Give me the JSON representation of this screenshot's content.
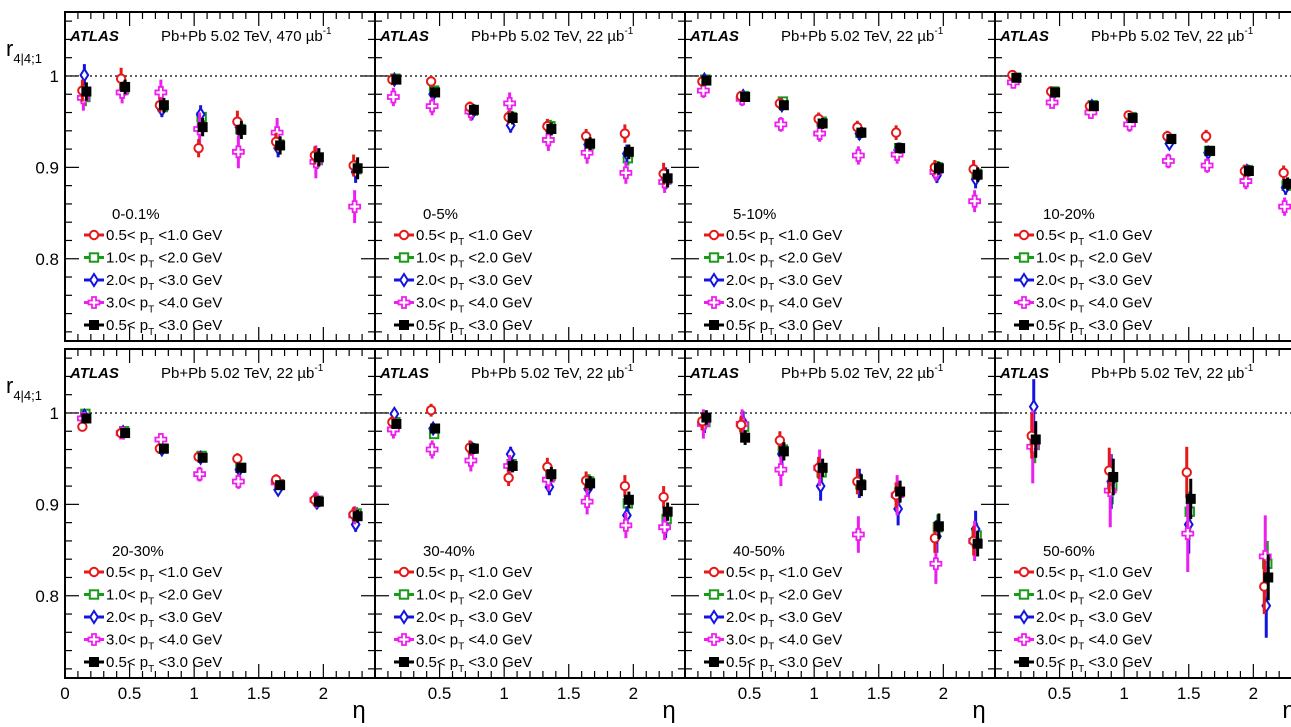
{
  "figure": {
    "experiment": "ATLAS",
    "ylabel_main": "r",
    "ylabel_sub": "4|4;1",
    "xlabel": "η",
    "ylim": [
      0.71,
      1.07
    ],
    "xlim": [
      0,
      2.4
    ],
    "y_ticks": [
      0.8,
      0.9,
      1
    ],
    "y_tick_labels": [
      "0.8",
      "0.9",
      "1"
    ],
    "x_ticks": [
      0,
      0.5,
      1,
      1.5,
      2
    ],
    "x_tick_labels": [
      "0",
      "0.5",
      "1",
      "1.5",
      "2"
    ],
    "reference_line": 1
  },
  "series_styles": [
    {
      "label_pre": "0.5< p",
      "label_sub": "T",
      "label_post": " <1.0 GeV",
      "color": "#e6191a",
      "marker": "open-circle"
    },
    {
      "label_pre": "1.0< p",
      "label_sub": "T",
      "label_post": " <2.0 GeV",
      "color": "#1a9a1a",
      "marker": "open-square"
    },
    {
      "label_pre": "2.0< p",
      "label_sub": "T",
      "label_post": " <3.0 GeV",
      "color": "#1414e0",
      "marker": "open-diamond"
    },
    {
      "label_pre": "3.0< p",
      "label_sub": "T",
      "label_post": " <4.0 GeV",
      "color": "#ee1fee",
      "marker": "open-cross"
    },
    {
      "label_pre": "0.5< p",
      "label_sub": "T",
      "label_post": " <3.0 GeV",
      "color": "#000000",
      "marker": "filled-square"
    }
  ],
  "chart_data": [
    {
      "type": "scatter",
      "centrality": "0-0.1%",
      "collision": "Pb+Pb 5.02 TeV, 470 µb",
      "lumi_sup": "-1",
      "x": [
        0.15,
        0.45,
        0.75,
        1.05,
        1.35,
        1.65,
        1.95,
        2.25
      ],
      "series": [
        {
          "name": "0.5< pT <1.0 GeV",
          "values": [
            0.984,
            0.997,
            0.968,
            0.921,
            0.95,
            0.928,
            0.913,
            0.902
          ],
          "errors": [
            0.012,
            0.012,
            0.008,
            0.01,
            0.012,
            0.01,
            0.01,
            0.012
          ]
        },
        {
          "name": "1.0< pT <2.0 GeV",
          "values": [
            0.977,
            0.986,
            0.966,
            0.955,
            0.942,
            0.925,
            0.908,
            0.898
          ],
          "errors": [
            0.01,
            0.008,
            0.007,
            0.008,
            0.009,
            0.009,
            0.009,
            0.01
          ]
        },
        {
          "name": "2.0< pT <3.0 GeV",
          "values": [
            1.001,
            0.984,
            0.963,
            0.958,
            0.944,
            0.921,
            0.908,
            0.895
          ],
          "errors": [
            0.012,
            0.008,
            0.008,
            0.01,
            0.01,
            0.01,
            0.01,
            0.012
          ]
        },
        {
          "name": "3.0< pT <4.0 GeV",
          "values": [
            0.976,
            0.982,
            0.982,
            0.942,
            0.917,
            0.938,
            0.906,
            0.857
          ],
          "errors": [
            0.014,
            0.012,
            0.014,
            0.018,
            0.018,
            0.016,
            0.018,
            0.018
          ]
        },
        {
          "name": "0.5< pT <3.0 GeV",
          "values": [
            0.983,
            0.988,
            0.968,
            0.944,
            0.941,
            0.924,
            0.911,
            0.899
          ],
          "errors": [
            0.01,
            0.008,
            0.008,
            0.01,
            0.01,
            0.01,
            0.01,
            0.012
          ]
        }
      ]
    },
    {
      "type": "scatter",
      "centrality": "0-5%",
      "collision": "Pb+Pb 5.02 TeV, 22 µb",
      "lumi_sup": "-1",
      "x": [
        0.15,
        0.45,
        0.75,
        1.05,
        1.35,
        1.65,
        1.95,
        2.25
      ],
      "series": [
        {
          "name": "0.5< pT <1.0 GeV",
          "values": [
            0.996,
            0.994,
            0.966,
            0.955,
            0.945,
            0.934,
            0.937,
            0.893
          ],
          "errors": [
            0.006,
            0.006,
            0.006,
            0.007,
            0.008,
            0.008,
            0.01,
            0.012
          ]
        },
        {
          "name": "1.0< pT <2.0 GeV",
          "values": [
            0.997,
            0.984,
            0.962,
            0.955,
            0.945,
            0.925,
            0.91,
            0.887
          ],
          "errors": [
            0.005,
            0.005,
            0.006,
            0.007,
            0.007,
            0.007,
            0.008,
            0.01
          ]
        },
        {
          "name": "2.0< pT <3.0 GeV",
          "values": [
            0.996,
            0.98,
            0.959,
            0.946,
            0.941,
            0.925,
            0.915,
            0.888
          ],
          "errors": [
            0.006,
            0.006,
            0.007,
            0.008,
            0.008,
            0.008,
            0.01,
            0.012
          ]
        },
        {
          "name": "3.0< pT <4.0 GeV",
          "values": [
            0.977,
            0.967,
            0.961,
            0.97,
            0.93,
            0.916,
            0.894,
            0.884
          ],
          "errors": [
            0.01,
            0.01,
            0.01,
            0.012,
            0.012,
            0.012,
            0.012,
            0.012
          ]
        },
        {
          "name": "0.5< pT <3.0 GeV",
          "values": [
            0.996,
            0.982,
            0.963,
            0.954,
            0.942,
            0.926,
            0.917,
            0.888
          ],
          "errors": [
            0.005,
            0.005,
            0.006,
            0.007,
            0.007,
            0.007,
            0.008,
            0.01
          ]
        }
      ]
    },
    {
      "type": "scatter",
      "centrality": "5-10%",
      "collision": "Pb+Pb 5.02 TeV, 22 µb",
      "lumi_sup": "-1",
      "x": [
        0.15,
        0.45,
        0.75,
        1.05,
        1.35,
        1.65,
        1.95,
        2.25
      ],
      "series": [
        {
          "name": "0.5< pT <1.0 GeV",
          "values": [
            0.994,
            0.978,
            0.97,
            0.953,
            0.944,
            0.938,
            0.9,
            0.898
          ],
          "errors": [
            0.005,
            0.005,
            0.006,
            0.007,
            0.007,
            0.008,
            0.008,
            0.01
          ]
        },
        {
          "name": "1.0< pT <2.0 GeV",
          "values": [
            0.996,
            0.978,
            0.972,
            0.95,
            0.938,
            0.921,
            0.9,
            0.893
          ],
          "errors": [
            0.004,
            0.004,
            0.005,
            0.006,
            0.006,
            0.006,
            0.007,
            0.008
          ]
        },
        {
          "name": "2.0< pT <3.0 GeV",
          "values": [
            0.996,
            0.978,
            0.968,
            0.949,
            0.937,
            0.919,
            0.891,
            0.887
          ],
          "errors": [
            0.005,
            0.005,
            0.006,
            0.007,
            0.007,
            0.008,
            0.008,
            0.01
          ]
        },
        {
          "name": "3.0< pT <4.0 GeV",
          "values": [
            0.984,
            0.975,
            0.947,
            0.937,
            0.913,
            0.914,
            0.895,
            0.863
          ],
          "errors": [
            0.008,
            0.008,
            0.008,
            0.009,
            0.01,
            0.01,
            0.01,
            0.012
          ]
        },
        {
          "name": "0.5< pT <3.0 GeV",
          "values": [
            0.995,
            0.977,
            0.968,
            0.948,
            0.938,
            0.921,
            0.899,
            0.892
          ],
          "errors": [
            0.004,
            0.004,
            0.005,
            0.006,
            0.006,
            0.006,
            0.007,
            0.008
          ]
        }
      ]
    },
    {
      "type": "scatter",
      "centrality": "10-20%",
      "collision": "Pb+Pb 5.02 TeV, 22 µb",
      "lumi_sup": "-1",
      "x": [
        0.15,
        0.45,
        0.75,
        1.05,
        1.35,
        1.65,
        1.95,
        2.25
      ],
      "series": [
        {
          "name": "0.5< pT <1.0 GeV",
          "values": [
            1.001,
            0.983,
            0.967,
            0.957,
            0.934,
            0.934,
            0.896,
            0.894
          ],
          "errors": [
            0.004,
            0.004,
            0.005,
            0.005,
            0.006,
            0.007,
            0.007,
            0.008
          ]
        },
        {
          "name": "1.0< pT <2.0 GeV",
          "values": [
            0.998,
            0.983,
            0.968,
            0.955,
            0.931,
            0.918,
            0.897,
            0.88
          ],
          "errors": [
            0.003,
            0.003,
            0.004,
            0.005,
            0.005,
            0.005,
            0.006,
            0.007
          ]
        },
        {
          "name": "2.0< pT <3.0 GeV",
          "values": [
            0.998,
            0.98,
            0.967,
            0.952,
            0.926,
            0.916,
            0.896,
            0.878
          ],
          "errors": [
            0.004,
            0.004,
            0.005,
            0.005,
            0.006,
            0.006,
            0.007,
            0.008
          ]
        },
        {
          "name": "3.0< pT <4.0 GeV",
          "values": [
            0.993,
            0.971,
            0.96,
            0.947,
            0.907,
            0.902,
            0.885,
            0.857
          ],
          "errors": [
            0.006,
            0.006,
            0.007,
            0.008,
            0.008,
            0.008,
            0.009,
            0.01
          ]
        },
        {
          "name": "0.5< pT <3.0 GeV",
          "values": [
            0.998,
            0.982,
            0.967,
            0.954,
            0.931,
            0.918,
            0.896,
            0.882
          ],
          "errors": [
            0.003,
            0.003,
            0.004,
            0.005,
            0.005,
            0.005,
            0.006,
            0.007
          ]
        }
      ]
    },
    {
      "type": "scatter",
      "centrality": "20-30%",
      "collision": "Pb+Pb 5.02 TeV, 22 µb",
      "lumi_sup": "-1",
      "x": [
        0.15,
        0.45,
        0.75,
        1.05,
        1.35,
        1.65,
        1.95,
        2.25
      ],
      "series": [
        {
          "name": "0.5< pT <1.0 GeV",
          "values": [
            0.985,
            0.978,
            0.961,
            0.952,
            0.95,
            0.927,
            0.905,
            0.889
          ],
          "errors": [
            0.004,
            0.004,
            0.005,
            0.005,
            0.006,
            0.006,
            0.007,
            0.008
          ]
        },
        {
          "name": "1.0< pT <2.0 GeV",
          "values": [
            0.999,
            0.98,
            0.961,
            0.953,
            0.94,
            0.922,
            0.904,
            0.89
          ],
          "errors": [
            0.003,
            0.003,
            0.004,
            0.004,
            0.005,
            0.005,
            0.006,
            0.007
          ]
        },
        {
          "name": "2.0< pT <3.0 GeV",
          "values": [
            0.997,
            0.979,
            0.96,
            0.951,
            0.938,
            0.916,
            0.902,
            0.878
          ],
          "errors": [
            0.004,
            0.004,
            0.005,
            0.005,
            0.006,
            0.006,
            0.007,
            0.008
          ]
        },
        {
          "name": "3.0< pT <4.0 GeV",
          "values": [
            0.994,
            0.978,
            0.971,
            0.933,
            0.925,
            0.924,
            0.905,
            0.888
          ],
          "errors": [
            0.006,
            0.006,
            0.007,
            0.008,
            0.008,
            0.008,
            0.009,
            0.01
          ]
        },
        {
          "name": "0.5< pT <3.0 GeV",
          "values": [
            0.994,
            0.978,
            0.961,
            0.951,
            0.94,
            0.921,
            0.903,
            0.887
          ],
          "errors": [
            0.003,
            0.003,
            0.004,
            0.004,
            0.005,
            0.005,
            0.006,
            0.007
          ]
        }
      ]
    },
    {
      "type": "scatter",
      "centrality": "30-40%",
      "collision": "Pb+Pb 5.02 TeV, 22 µb",
      "lumi_sup": "-1",
      "x": [
        0.15,
        0.45,
        0.75,
        1.05,
        1.35,
        1.65,
        1.95,
        2.25
      ],
      "series": [
        {
          "name": "0.5< pT <1.0 GeV",
          "values": [
            0.99,
            1.003,
            0.962,
            0.929,
            0.941,
            0.926,
            0.92,
            0.908
          ],
          "errors": [
            0.006,
            0.007,
            0.008,
            0.009,
            0.01,
            0.01,
            0.012,
            0.012
          ]
        },
        {
          "name": "1.0< pT <2.0 GeV",
          "values": [
            0.99,
            0.977,
            0.961,
            0.944,
            0.931,
            0.925,
            0.901,
            0.884
          ],
          "errors": [
            0.005,
            0.005,
            0.006,
            0.007,
            0.008,
            0.008,
            0.009,
            0.01
          ]
        },
        {
          "name": "2.0< pT <3.0 GeV",
          "values": [
            0.999,
            0.983,
            0.961,
            0.955,
            0.919,
            0.917,
            0.888,
            0.875
          ],
          "errors": [
            0.006,
            0.006,
            0.007,
            0.008,
            0.009,
            0.01,
            0.01,
            0.012
          ]
        },
        {
          "name": "3.0< pT <4.0 GeV",
          "values": [
            0.982,
            0.96,
            0.948,
            0.942,
            0.927,
            0.903,
            0.877,
            0.875
          ],
          "errors": [
            0.01,
            0.01,
            0.012,
            0.012,
            0.012,
            0.014,
            0.014,
            0.014
          ]
        },
        {
          "name": "0.5< pT <3.0 GeV",
          "values": [
            0.988,
            0.983,
            0.961,
            0.942,
            0.933,
            0.923,
            0.905,
            0.892
          ],
          "errors": [
            0.005,
            0.005,
            0.006,
            0.007,
            0.008,
            0.008,
            0.009,
            0.01
          ]
        }
      ]
    },
    {
      "type": "scatter",
      "centrality": "40-50%",
      "collision": "Pb+Pb 5.02 TeV, 22 µb",
      "lumi_sup": "-1",
      "x": [
        0.15,
        0.45,
        0.75,
        1.05,
        1.35,
        1.65,
        1.95,
        2.25
      ],
      "series": [
        {
          "name": "0.5< pT <1.0 GeV",
          "values": [
            0.991,
            0.987,
            0.97,
            0.94,
            0.925,
            0.91,
            0.863,
            0.86
          ],
          "errors": [
            0.01,
            0.01,
            0.01,
            0.012,
            0.014,
            0.014,
            0.016,
            0.016
          ]
        },
        {
          "name": "1.0< pT <2.0 GeV",
          "values": [
            0.99,
            0.985,
            0.96,
            0.935,
            0.922,
            0.913,
            0.875,
            0.866
          ],
          "errors": [
            0.008,
            0.008,
            0.01,
            0.01,
            0.012,
            0.012,
            0.014,
            0.014
          ]
        },
        {
          "name": "2.0< pT <3.0 GeV",
          "values": [
            0.99,
            0.99,
            0.955,
            0.92,
            0.923,
            0.895,
            0.865,
            0.873
          ],
          "errors": [
            0.012,
            0.012,
            0.014,
            0.016,
            0.016,
            0.018,
            0.018,
            0.02
          ]
        },
        {
          "name": "3.0< pT <4.0 GeV",
          "values": [
            0.988,
            0.988,
            0.938,
            0.94,
            0.867,
            0.91,
            0.835,
            0.86
          ],
          "errors": [
            0.016,
            0.016,
            0.018,
            0.02,
            0.02,
            0.022,
            0.022,
            0.022
          ]
        },
        {
          "name": "0.5< pT <3.0 GeV",
          "values": [
            0.995,
            0.973,
            0.958,
            0.94,
            0.921,
            0.914,
            0.876,
            0.857
          ],
          "errors": [
            0.008,
            0.008,
            0.01,
            0.01,
            0.012,
            0.012,
            0.014,
            0.014
          ]
        }
      ]
    },
    {
      "type": "scatter",
      "centrality": "50-60%",
      "collision": "Pb+Pb 5.02 TeV, 22 µb",
      "lumi_sup": "-1",
      "x": [
        0.3,
        0.9,
        1.5,
        2.1
      ],
      "series": [
        {
          "name": "0.5< pT <1.0 GeV",
          "values": [
            0.975,
            0.937,
            0.935,
            0.81
          ],
          "errors": [
            0.025,
            0.025,
            0.028,
            0.03
          ]
        },
        {
          "name": "1.0< pT <2.0 GeV",
          "values": [
            0.965,
            0.92,
            0.892,
            0.835
          ],
          "errors": [
            0.02,
            0.02,
            0.022,
            0.025
          ]
        },
        {
          "name": "2.0< pT <3.0 GeV",
          "values": [
            1.007,
            0.925,
            0.878,
            0.789
          ],
          "errors": [
            0.03,
            0.03,
            0.032,
            0.035
          ]
        },
        {
          "name": "3.0< pT <4.0 GeV",
          "values": [
            0.963,
            0.915,
            0.868,
            0.843
          ],
          "errors": [
            0.04,
            0.04,
            0.042,
            0.045
          ]
        },
        {
          "name": "0.5< pT <3.0 GeV",
          "values": [
            0.971,
            0.93,
            0.906,
            0.82
          ],
          "errors": [
            0.02,
            0.02,
            0.022,
            0.025
          ]
        }
      ]
    }
  ]
}
